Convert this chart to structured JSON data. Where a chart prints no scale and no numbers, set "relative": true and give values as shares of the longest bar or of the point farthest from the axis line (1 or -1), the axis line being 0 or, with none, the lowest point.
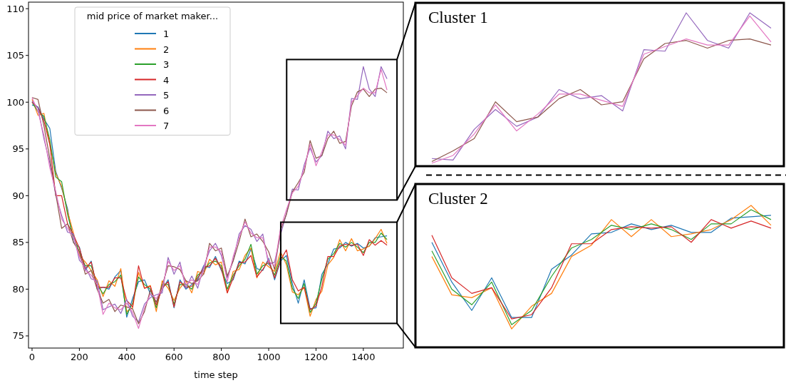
{
  "chart_data": [
    {
      "type": "line",
      "xlabel": "time step",
      "legend_title": "mid price of market maker...",
      "legend": "top left",
      "xlim": [
        -15,
        1569
      ],
      "ylim": [
        73.7,
        110.7
      ],
      "xticks": [
        0,
        200,
        400,
        600,
        800,
        1000,
        1200,
        1400
      ],
      "yticks": [
        75,
        80,
        85,
        90,
        95,
        100,
        105,
        110
      ],
      "x": [
        0,
        25,
        50,
        75,
        100,
        125,
        150,
        175,
        200,
        225,
        250,
        275,
        300,
        325,
        350,
        375,
        400,
        425,
        450,
        475,
        500,
        525,
        550,
        575,
        600,
        625,
        650,
        675,
        700,
        725,
        750,
        775,
        800,
        825,
        850,
        875,
        900,
        925,
        950,
        975,
        1000,
        1025,
        1050,
        1075,
        1100,
        1125,
        1150,
        1175,
        1200,
        1225,
        1250,
        1275,
        1300,
        1325,
        1350,
        1375,
        1400,
        1425,
        1450,
        1475,
        1500
      ],
      "series": [
        {
          "name": "1",
          "color": "#1f77b4",
          "values": [
            99.7,
            99.5,
            98.2,
            97.2,
            92.6,
            90.8,
            88.6,
            85,
            84.5,
            82,
            83,
            80,
            80.2,
            80,
            81.3,
            82,
            77,
            79,
            80.8,
            81,
            79.5,
            78.6,
            80,
            81,
            78,
            81,
            80,
            80.5,
            81,
            82.5,
            82.3,
            83.5,
            82,
            80.6,
            81,
            83,
            82.7,
            84.3,
            82.2,
            82,
            83.3,
            81,
            83,
            83.6,
            80.6,
            78.5,
            81,
            77.9,
            78,
            81.6,
            82.7,
            84.3,
            84.4,
            85,
            84.6,
            84.9,
            84.4,
            84.6,
            85.5,
            85.6,
            85.7
          ]
        },
        {
          "name": "2",
          "color": "#ff7f0e",
          "values": [
            100.3,
            98.6,
            98.8,
            95.5,
            92.4,
            91,
            88.3,
            86,
            83.6,
            82.9,
            82,
            81,
            79.2,
            80.9,
            80.3,
            82.2,
            77.6,
            78,
            81.8,
            80.1,
            80.4,
            77.6,
            80.9,
            80.1,
            78.8,
            80.1,
            80.9,
            79.6,
            81.9,
            81.6,
            83.2,
            82.6,
            82.9,
            79.6,
            81.9,
            82.1,
            83.6,
            84.4,
            81.2,
            82.9,
            82.4,
            81.9,
            84,
            82.6,
            79.7,
            79.4,
            80.2,
            77.1,
            78.9,
            79.8,
            82.6,
            83.4,
            85.3,
            84.1,
            85.4,
            84.1,
            84.3,
            84.6,
            85.4,
            86.4,
            84.9
          ]
        },
        {
          "name": "3",
          "color": "#2ca02c",
          "values": [
            100,
            99,
            98.5,
            96,
            92,
            91.5,
            88,
            85.5,
            84,
            82.5,
            82.5,
            80.5,
            79.5,
            80.5,
            80.8,
            81.5,
            77.3,
            78.5,
            81.3,
            80.5,
            80,
            78,
            80.5,
            80.5,
            78.4,
            80.5,
            80.5,
            80,
            81.5,
            82,
            82.8,
            83,
            82.5,
            80,
            81.5,
            82.5,
            83.2,
            84.8,
            81.6,
            82.5,
            82.8,
            81.5,
            83.5,
            83,
            80.1,
            79,
            80.6,
            77.5,
            78.5,
            81.1,
            83.2,
            83.8,
            84.9,
            84.5,
            85,
            84.5,
            83.9,
            85,
            85,
            86,
            85.3
          ]
        },
        {
          "name": "4",
          "color": "#d62728",
          "values": [
            100,
            99.4,
            98,
            95.5,
            90,
            90,
            87,
            85.8,
            84.4,
            82.2,
            82.9,
            80.2,
            80.2,
            80.2,
            81.2,
            81.2,
            78.8,
            78.1,
            82.5,
            80.1,
            80.3,
            78.3,
            80.1,
            80.8,
            78.1,
            80.8,
            80.2,
            80.3,
            81.2,
            82.3,
            82.5,
            83.3,
            82.2,
            79.6,
            81.2,
            82.8,
            82.9,
            83.6,
            81.3,
            82.1,
            83.1,
            81.2,
            83.1,
            84.2,
            81,
            79.8,
            80.2,
            77.8,
            78.2,
            80.3,
            83.5,
            83.5,
            84.6,
            84.8,
            84.7,
            84.8,
            83.6,
            85.3,
            84.7,
            85.2,
            84.7
          ]
        },
        {
          "name": "5",
          "color": "#9467bd",
          "values": [
            100.1,
            99.4,
            96.1,
            93.5,
            90.1,
            87.9,
            86.1,
            85.9,
            83.1,
            82.4,
            81.1,
            80.9,
            77.8,
            78.1,
            78.4,
            77.4,
            78.9,
            77.1,
            76.5,
            78.4,
            79.1,
            79.4,
            79.6,
            83.4,
            81.6,
            82.9,
            80.1,
            81.4,
            80.1,
            82.4,
            84.1,
            84.9,
            83.6,
            81.2,
            83.1,
            85.9,
            86.8,
            86.4,
            85.1,
            85.9,
            82.6,
            82.9,
            85.8,
            88.1,
            90.7,
            90.6,
            93.3,
            95.1,
            93.6,
            94.3,
            96.9,
            96.1,
            96.4,
            95,
            100.4,
            100.3,
            103.8,
            101.4,
            100.6,
            103.8,
            102.5
          ]
        },
        {
          "name": "6",
          "color": "#8c564b",
          "values": [
            100.5,
            100.3,
            97.5,
            94,
            90.2,
            86.5,
            87,
            85,
            84,
            81.6,
            82,
            80,
            78.5,
            78.9,
            77.6,
            78.3,
            78.1,
            77.9,
            76.3,
            77.6,
            79.9,
            78.6,
            80.4,
            82.5,
            82.4,
            82.1,
            80.9,
            80.6,
            80.9,
            81.6,
            84.9,
            84.1,
            84.4,
            81.4,
            83,
            85.1,
            87.5,
            85.6,
            85.9,
            85.1,
            84,
            82.1,
            86.3,
            88,
            90.4,
            91.4,
            92.5,
            95.9,
            94,
            94.3,
            96.1,
            96.9,
            95.6,
            95.8,
            99.6,
            101.1,
            101.4,
            100.6,
            101.4,
            101.5,
            101
          ]
        },
        {
          "name": "7",
          "color": "#e377c2",
          "values": [
            100.5,
            99,
            96.5,
            93,
            90.5,
            87.5,
            86.5,
            85.5,
            83.5,
            82,
            81.5,
            80.5,
            77.3,
            78.5,
            78,
            77.8,
            78.5,
            77.5,
            75.8,
            78,
            79.5,
            79,
            80,
            83,
            82,
            82.5,
            80.5,
            81,
            80.5,
            82,
            84.5,
            84.5,
            84,
            80.8,
            83.5,
            85.5,
            87.2,
            86,
            85.5,
            85.5,
            83,
            82.5,
            86.5,
            88.5,
            90.3,
            91,
            92.9,
            95.5,
            93.2,
            94.7,
            96.5,
            96.5,
            96,
            95.4,
            100,
            100.7,
            101.5,
            101,
            101,
            103.5,
            101.3
          ]
        }
      ]
    },
    {
      "type": "line",
      "title": "Cluster 1",
      "relative": true,
      "categories": [
        null,
        null,
        null,
        null,
        null,
        null,
        null,
        null,
        null,
        null,
        null,
        null,
        null,
        null,
        null,
        null,
        null
      ],
      "series": [
        {
          "color": "#9467bd",
          "values": [
            0.05,
            0.04,
            0.24,
            0.37,
            0.26,
            0.32,
            0.5,
            0.44,
            0.46,
            0.36,
            0.76,
            0.75,
            1,
            0.82,
            0.77,
            1,
            0.9
          ]
        },
        {
          "color": "#8c564b",
          "values": [
            0.03,
            0.1,
            0.18,
            0.42,
            0.29,
            0.32,
            0.44,
            0.5,
            0.4,
            0.42,
            0.7,
            0.8,
            0.82,
            0.77,
            0.82,
            0.83,
            0.79
          ]
        },
        {
          "color": "#e377c2",
          "values": [
            0.02,
            0.07,
            0.21,
            0.4,
            0.23,
            0.34,
            0.47,
            0.47,
            0.43,
            0.39,
            0.73,
            0.78,
            0.83,
            0.79,
            0.79,
            0.98,
            0.81
          ]
        }
      ]
    },
    {
      "type": "line",
      "title": "Cluster 2",
      "relative": true,
      "categories": [
        null,
        null,
        null,
        null,
        null,
        null,
        null,
        null,
        null,
        null,
        null,
        null,
        null,
        null,
        null,
        null,
        null,
        null
      ],
      "series": [
        {
          "color": "#1f77b4",
          "values": [
            0.74,
            0.46,
            0.26,
            0.49,
            0.21,
            0.21,
            0.55,
            0.65,
            0.8,
            0.81,
            0.87,
            0.83,
            0.86,
            0.81,
            0.81,
            0.91,
            0.92,
            0.93
          ]
        },
        {
          "color": "#ff7f0e",
          "values": [
            0.64,
            0.37,
            0.35,
            0.42,
            0.13,
            0.29,
            0.38,
            0.64,
            0.72,
            0.9,
            0.78,
            0.9,
            0.78,
            0.8,
            0.83,
            0.9,
            1,
            0.86
          ]
        },
        {
          "color": "#2ca02c",
          "values": [
            0.68,
            0.41,
            0.3,
            0.46,
            0.16,
            0.26,
            0.5,
            0.7,
            0.76,
            0.86,
            0.83,
            0.87,
            0.83,
            0.76,
            0.87,
            0.87,
            0.97,
            0.9
          ]
        },
        {
          "color": "#d62728",
          "values": [
            0.79,
            0.49,
            0.38,
            0.42,
            0.2,
            0.23,
            0.42,
            0.73,
            0.73,
            0.83,
            0.85,
            0.84,
            0.85,
            0.74,
            0.9,
            0.84,
            0.89,
            0.84
          ]
        }
      ]
    }
  ]
}
